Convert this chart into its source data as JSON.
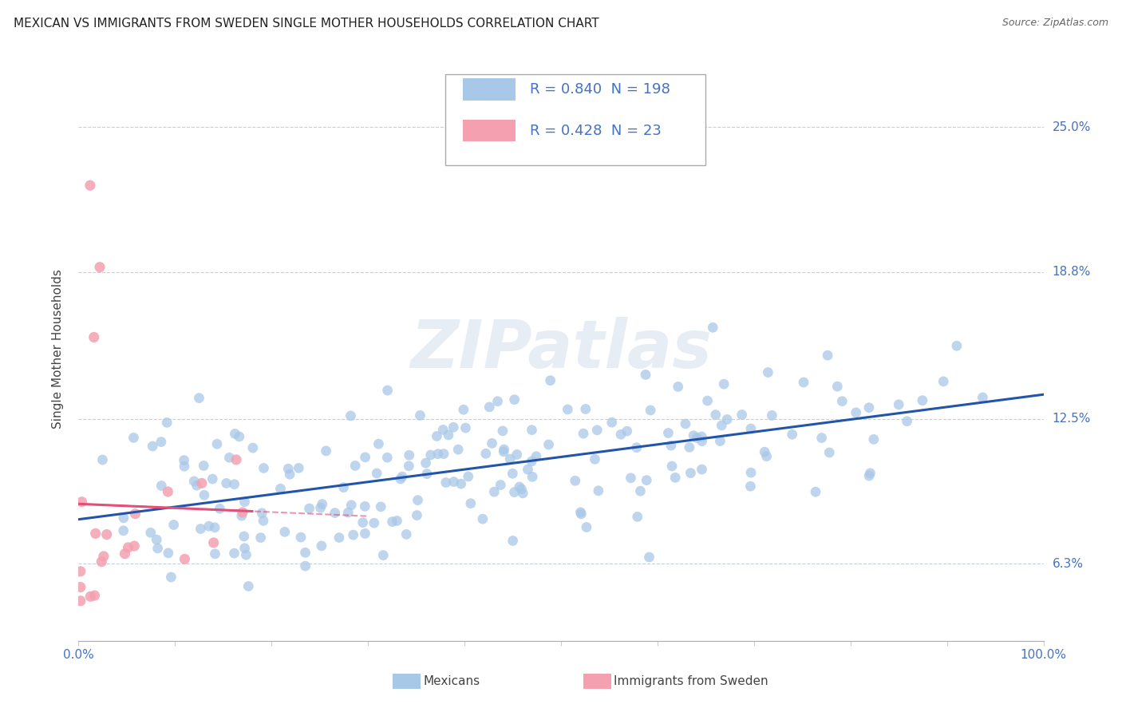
{
  "title": "MEXICAN VS IMMIGRANTS FROM SWEDEN SINGLE MOTHER HOUSEHOLDS CORRELATION CHART",
  "source": "Source: ZipAtlas.com",
  "ylabel": "Single Mother Households",
  "watermark": "ZIPatlas",
  "xlim": [
    0,
    1.0
  ],
  "ylim": [
    0.03,
    0.28
  ],
  "yticks": [
    0.063,
    0.125,
    0.188,
    0.25
  ],
  "ytick_labels": [
    "6.3%",
    "12.5%",
    "18.8%",
    "25.0%"
  ],
  "legend_entries": [
    {
      "label": "Mexicans",
      "R": "0.840",
      "N": "198",
      "color": "#a8c8e8"
    },
    {
      "label": "Immigrants from Sweden",
      "R": "0.428",
      "N": "23",
      "color": "#f4a0b0"
    }
  ],
  "mexicans_color": "#a8c8e8",
  "mexicans_line_color": "#2255aa",
  "sweden_color": "#f4a0b0",
  "sweden_line_color": "#e0507a",
  "R_mexicans": 0.84,
  "N_mexicans": 198,
  "R_sweden": 0.428,
  "N_sweden": 23,
  "background_color": "#ffffff",
  "grid_color": "#c0d0e0",
  "title_fontsize": 11,
  "tick_label_color": "#4472c4"
}
